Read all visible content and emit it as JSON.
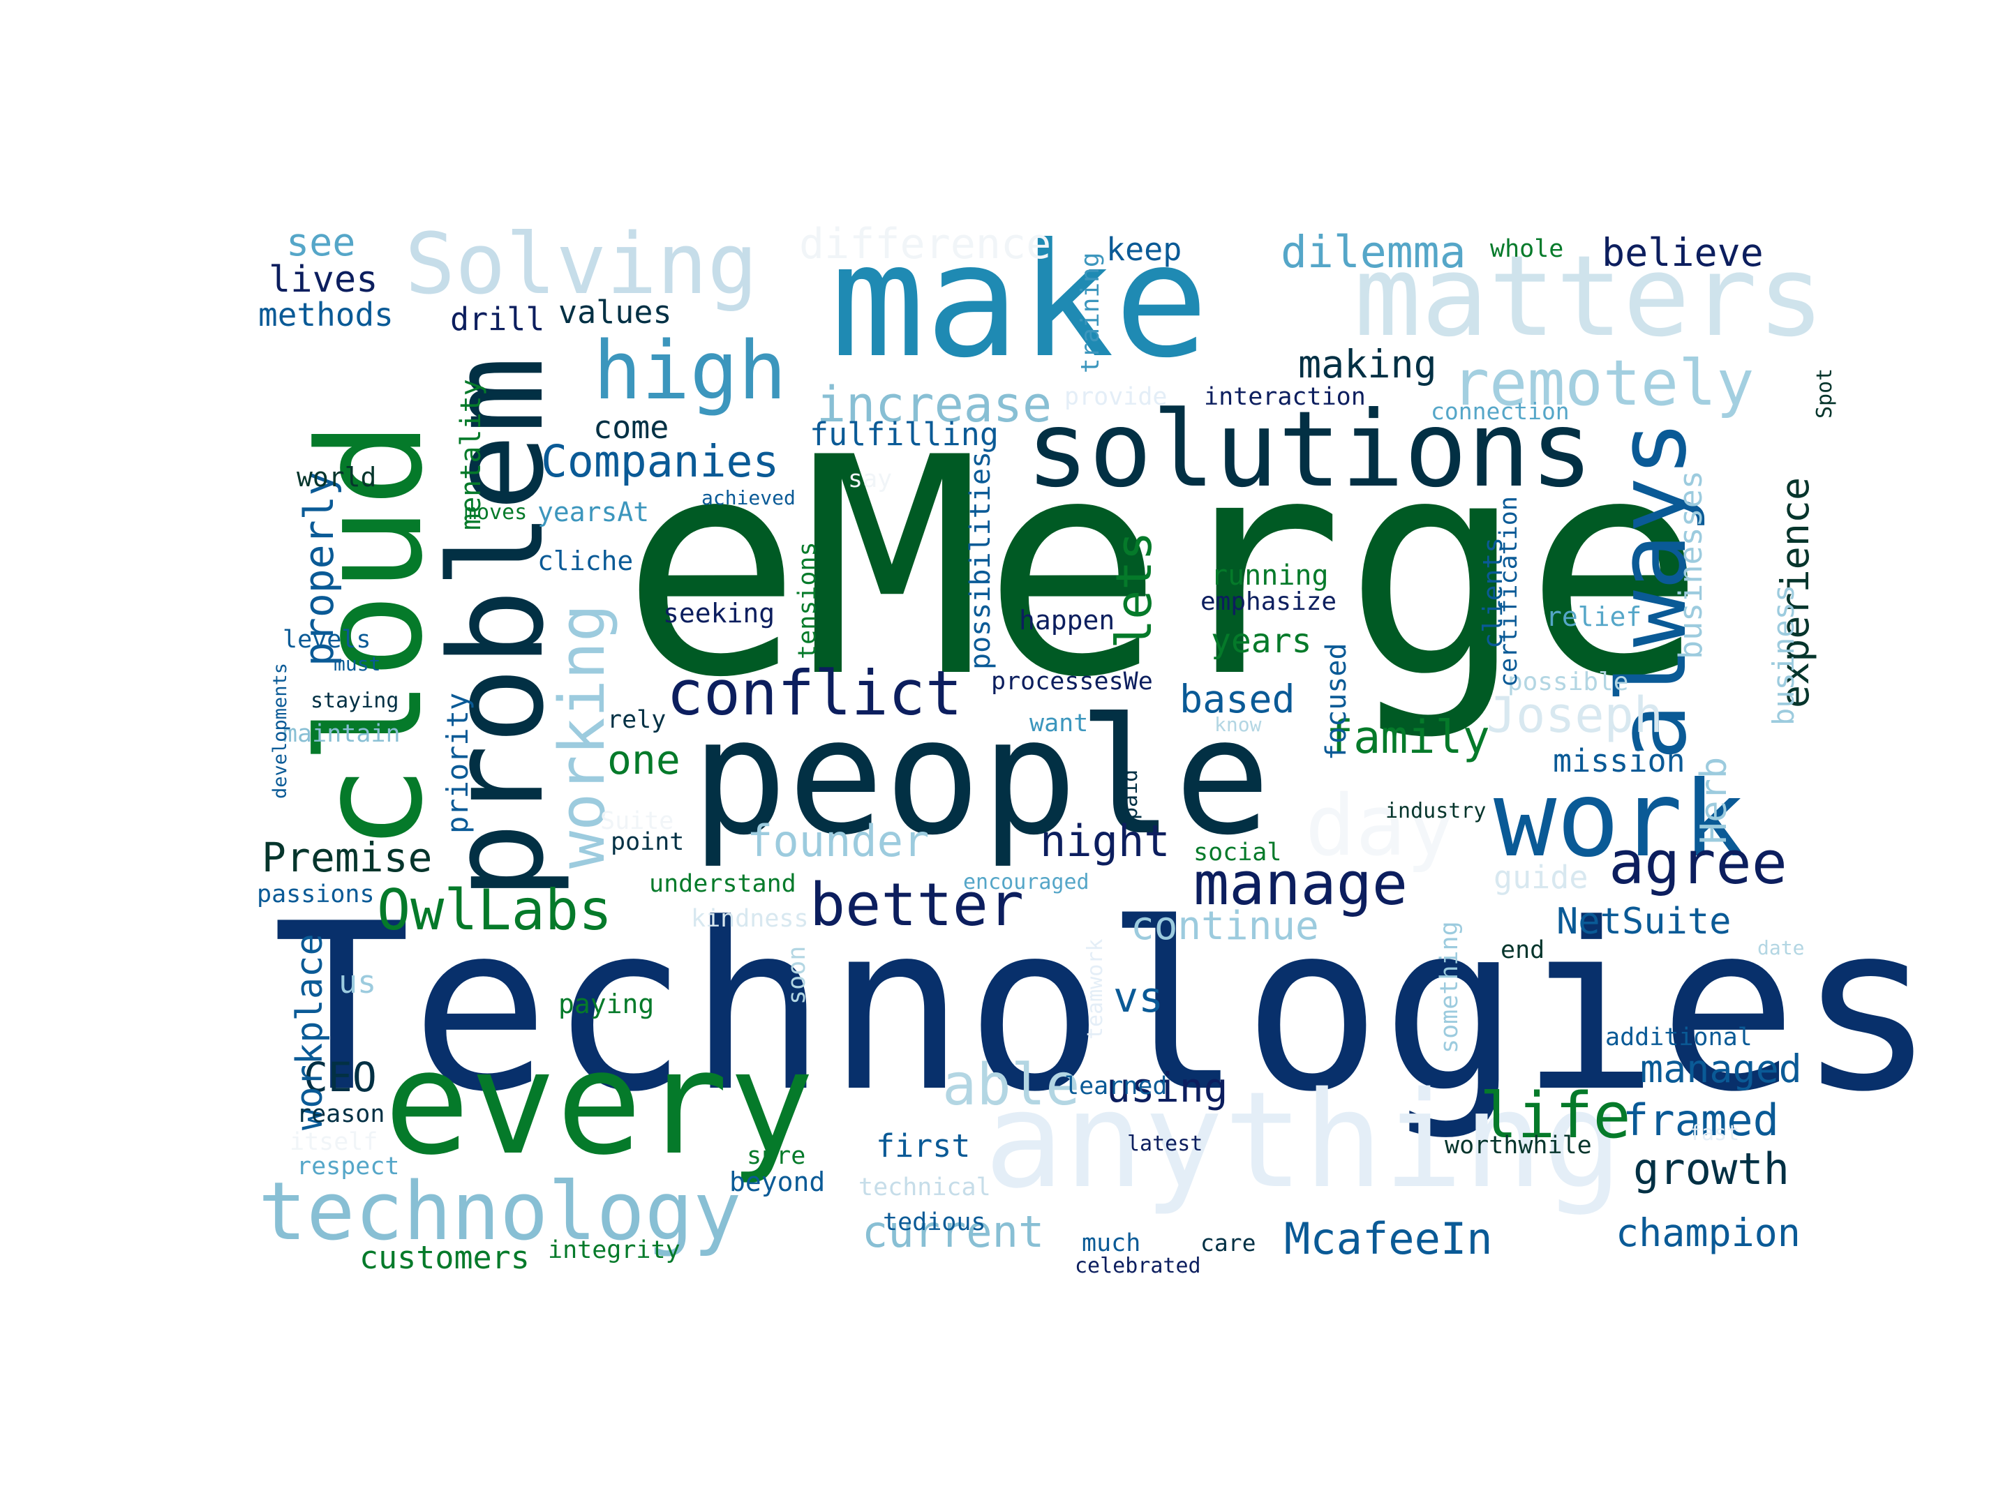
{
  "words": [
    {
      "id": "emerge",
      "text": "eMerge",
      "color": "#005a24"
    },
    {
      "id": "technologies",
      "text": "Technologies",
      "color": "#08306b"
    },
    {
      "id": "people",
      "text": "people",
      "color": "#023044"
    },
    {
      "id": "make",
      "text": "make",
      "color": "#1f8ab3"
    },
    {
      "id": "every",
      "text": "every",
      "color": "#057a2a"
    },
    {
      "id": "anything",
      "text": "anything",
      "color": "#e4eef7"
    },
    {
      "id": "solutions",
      "text": "solutions",
      "color": "#023044"
    },
    {
      "id": "cloud",
      "text": "cloud",
      "color": "#057a2a"
    },
    {
      "id": "problem",
      "text": "problem",
      "color": "#023044"
    },
    {
      "id": "matters",
      "text": "matters",
      "color": "#cfe3ec"
    },
    {
      "id": "solving",
      "text": "Solving",
      "color": "#c6dde9"
    },
    {
      "id": "technology",
      "text": "technology",
      "color": "#88bfd4"
    },
    {
      "id": "work",
      "text": "work",
      "color": "#0a5a96"
    },
    {
      "id": "always",
      "text": "always",
      "color": "#0a5a96"
    },
    {
      "id": "high",
      "text": "high",
      "color": "#3c96bd"
    },
    {
      "id": "conflict",
      "text": "conflict",
      "color": "#0c1e5e"
    },
    {
      "id": "remotely",
      "text": "remotely",
      "color": "#a3cfe0"
    },
    {
      "id": "working",
      "text": "working",
      "color": "#9ccbde"
    },
    {
      "id": "day",
      "text": "day",
      "color": "#f4f7fa"
    },
    {
      "id": "better",
      "text": "better",
      "color": "#0c1e5e"
    },
    {
      "id": "manage",
      "text": "manage",
      "color": "#0c1e5e"
    },
    {
      "id": "agree",
      "text": "agree",
      "color": "#0c1e5e"
    },
    {
      "id": "owllabs",
      "text": "OwlLabs",
      "color": "#057a2a"
    },
    {
      "id": "difference",
      "text": "difference",
      "color": "#f1f5f8"
    },
    {
      "id": "dilemma",
      "text": "dilemma",
      "color": "#55a6c8"
    },
    {
      "id": "companies",
      "text": "Companies",
      "color": "#0a5a96"
    },
    {
      "id": "joseph",
      "text": "Joseph",
      "color": "#d8e8f0"
    },
    {
      "id": "increase",
      "text": "increase",
      "color": "#88bfd4"
    },
    {
      "id": "lets",
      "text": "lets",
      "color": "#057a2a"
    },
    {
      "id": "experience",
      "text": "experience",
      "color": "#06352c"
    },
    {
      "id": "life",
      "text": "life",
      "color": "#057a2a"
    },
    {
      "id": "able",
      "text": "able",
      "color": "#b3d6e3"
    },
    {
      "id": "family",
      "text": "family",
      "color": "#057a2a"
    },
    {
      "id": "premise",
      "text": "Premise",
      "color": "#06352c"
    },
    {
      "id": "founder",
      "text": "founder",
      "color": "#9ccbde"
    },
    {
      "id": "night",
      "text": "night",
      "color": "#0c1e5e"
    },
    {
      "id": "continue",
      "text": "continue",
      "color": "#9ccbde"
    },
    {
      "id": "current",
      "text": "current",
      "color": "#88bfd4"
    },
    {
      "id": "growth",
      "text": "growth",
      "color": "#023044"
    },
    {
      "id": "champion",
      "text": "champion",
      "color": "#0a5a96"
    },
    {
      "id": "mcafeein",
      "text": "McafeeIn",
      "color": "#0a5a96"
    },
    {
      "id": "framed",
      "text": "framed",
      "color": "#0a5a96"
    },
    {
      "id": "managed",
      "text": "managed",
      "color": "#0a5a96"
    },
    {
      "id": "netsuite",
      "text": "NetSuite",
      "color": "#0a5a96"
    },
    {
      "id": "believe",
      "text": "believe",
      "color": "#0c1e5e"
    },
    {
      "id": "making",
      "text": "making",
      "color": "#023044"
    },
    {
      "id": "ceo",
      "text": "CEO",
      "color": "#023044"
    },
    {
      "id": "using",
      "text": "using",
      "color": "#0c1e5e"
    },
    {
      "id": "vs",
      "text": "vs",
      "color": "#0a5a96"
    },
    {
      "id": "based",
      "text": "based",
      "color": "#0a5a96"
    },
    {
      "id": "one",
      "text": "one",
      "color": "#057a2a"
    },
    {
      "id": "properly",
      "text": "properly",
      "color": "#0a5a96"
    },
    {
      "id": "workplace",
      "text": "workplace",
      "color": "#0a5a96"
    },
    {
      "id": "see",
      "text": "see",
      "color": "#55a6c8"
    },
    {
      "id": "lives",
      "text": "lives",
      "color": "#0c1e5e"
    },
    {
      "id": "methods",
      "text": "methods",
      "color": "#0a5a96"
    },
    {
      "id": "drill",
      "text": "drill",
      "color": "#0c1e5e"
    },
    {
      "id": "values",
      "text": "values",
      "color": "#023044"
    },
    {
      "id": "keep",
      "text": "keep",
      "color": "#0a5a96"
    },
    {
      "id": "whole",
      "text": "whole",
      "color": "#057a2a"
    },
    {
      "id": "fulfilling",
      "text": "fulfilling",
      "color": "#0a5a96"
    },
    {
      "id": "come",
      "text": "come",
      "color": "#023044"
    },
    {
      "id": "interaction",
      "text": "interaction",
      "color": "#0c1e5e"
    },
    {
      "id": "provide",
      "text": "provide",
      "color": "#e4eef7"
    },
    {
      "id": "connection",
      "text": "connection",
      "color": "#55a6c8"
    },
    {
      "id": "years",
      "text": "years",
      "color": "#057a2a"
    },
    {
      "id": "emphasize",
      "text": "emphasize",
      "color": "#0c1e5e"
    },
    {
      "id": "running",
      "text": "running",
      "color": "#057a2a"
    },
    {
      "id": "relief",
      "text": "relief",
      "color": "#55a6c8"
    },
    {
      "id": "possible",
      "text": "possible",
      "color": "#b3d6e3"
    },
    {
      "id": "mission",
      "text": "mission",
      "color": "#0a5a96"
    },
    {
      "id": "industry",
      "text": "industry",
      "color": "#06352c"
    },
    {
      "id": "guide",
      "text": "guide",
      "color": "#d8e8f0"
    },
    {
      "id": "end",
      "text": "end",
      "color": "#06352c"
    },
    {
      "id": "date",
      "text": "date",
      "color": "#b3d6e3"
    },
    {
      "id": "additional",
      "text": "additional",
      "color": "#0a5a96"
    },
    {
      "id": "worthwhile",
      "text": "worthwhile",
      "color": "#06352c"
    },
    {
      "id": "fast",
      "text": "fast",
      "color": "#e4eef7"
    },
    {
      "id": "latest",
      "text": "latest",
      "color": "#0c1e5e"
    },
    {
      "id": "learned",
      "text": "learned",
      "color": "#0a5a96"
    },
    {
      "id": "first",
      "text": "first",
      "color": "#0a5a96"
    },
    {
      "id": "sure",
      "text": "sure",
      "color": "#057a2a"
    },
    {
      "id": "beyond",
      "text": "beyond",
      "color": "#0a5a96"
    },
    {
      "id": "technical",
      "text": "technical",
      "color": "#c6dde9"
    },
    {
      "id": "tedious",
      "text": "tedious",
      "color": "#0a5a96"
    },
    {
      "id": "much",
      "text": "much",
      "color": "#0a5a96"
    },
    {
      "id": "care",
      "text": "care",
      "color": "#023044"
    },
    {
      "id": "celebrated",
      "text": "celebrated",
      "color": "#0c1e5e"
    },
    {
      "id": "integrity",
      "text": "integrity",
      "color": "#057a2a"
    },
    {
      "id": "customers",
      "text": "customers",
      "color": "#057a2a"
    },
    {
      "id": "respect",
      "text": "respect",
      "color": "#55a6c8"
    },
    {
      "id": "itself",
      "text": "itself",
      "color": "#f1f5f8"
    },
    {
      "id": "reason",
      "text": "reason",
      "color": "#023044"
    },
    {
      "id": "us",
      "text": "us",
      "color": "#9ccbde"
    },
    {
      "id": "paying",
      "text": "paying",
      "color": "#057a2a"
    },
    {
      "id": "kindness",
      "text": "kindness",
      "color": "#d8e8f0"
    },
    {
      "id": "understand",
      "text": "understand",
      "color": "#057a2a"
    },
    {
      "id": "encouraged",
      "text": "encouraged",
      "color": "#55a6c8"
    },
    {
      "id": "social",
      "text": "social",
      "color": "#057a2a"
    },
    {
      "id": "passions",
      "text": "passions",
      "color": "#0a5a96"
    },
    {
      "id": "point",
      "text": "point",
      "color": "#023044"
    },
    {
      "id": "suite",
      "text": "Suite",
      "color": "#f1f5f8"
    },
    {
      "id": "rely",
      "text": "rely",
      "color": "#023044"
    },
    {
      "id": "want",
      "text": "want",
      "color": "#3c96bd"
    },
    {
      "id": "know",
      "text": "know",
      "color": "#b3d6e3"
    },
    {
      "id": "processeswe",
      "text": "processesWe",
      "color": "#0c1e5e"
    },
    {
      "id": "happen",
      "text": "happen",
      "color": "#0c1e5e"
    },
    {
      "id": "seeking",
      "text": "seeking",
      "color": "#0c1e5e"
    },
    {
      "id": "cliche",
      "text": "cliche",
      "color": "#0a5a96"
    },
    {
      "id": "yearsat",
      "text": "yearsAt",
      "color": "#3c96bd"
    },
    {
      "id": "moves",
      "text": "moves",
      "color": "#057a2a"
    },
    {
      "id": "achieved",
      "text": "achieved",
      "color": "#0a5a96"
    },
    {
      "id": "say",
      "text": "say",
      "color": "#f1f5f8"
    },
    {
      "id": "world",
      "text": "world",
      "color": "#06352c"
    },
    {
      "id": "levels",
      "text": "levels",
      "color": "#0a5a96"
    },
    {
      "id": "must",
      "text": "must",
      "color": "#0a5a96"
    },
    {
      "id": "staying",
      "text": "staying",
      "color": "#023044"
    },
    {
      "id": "maintain",
      "text": "maintain",
      "color": "#88bfd4"
    },
    {
      "id": "developments",
      "text": "developments",
      "color": "#0a5a96"
    },
    {
      "id": "priority",
      "text": "priority",
      "color": "#0a5a96"
    },
    {
      "id": "mentality",
      "text": "mentality",
      "color": "#057a2a"
    },
    {
      "id": "training",
      "text": "training",
      "color": "#3c96bd"
    },
    {
      "id": "possibilities",
      "text": "possibilities",
      "color": "#0a5a96"
    },
    {
      "id": "tensions",
      "text": "tensions",
      "color": "#057a2a"
    },
    {
      "id": "paid",
      "text": "paid",
      "color": "#023044"
    },
    {
      "id": "focused",
      "text": "focused",
      "color": "#0a5a96"
    },
    {
      "id": "teamwork",
      "text": "teamwork",
      "color": "#e4eef7"
    },
    {
      "id": "soon",
      "text": "soon",
      "color": "#b3d6e3"
    },
    {
      "id": "something",
      "text": "something",
      "color": "#9ccbde"
    },
    {
      "id": "clients",
      "text": "clients",
      "color": "#0a5a96"
    },
    {
      "id": "certification",
      "text": "certification",
      "color": "#0a5a96"
    },
    {
      "id": "businesses",
      "text": "businesses",
      "color": "#9ccbde"
    },
    {
      "id": "business",
      "text": "business",
      "color": "#9ccbde"
    },
    {
      "id": "herb",
      "text": "Herb",
      "color": "#9ccbde"
    },
    {
      "id": "spot",
      "text": "Spot",
      "color": "#06352c"
    }
  ]
}
